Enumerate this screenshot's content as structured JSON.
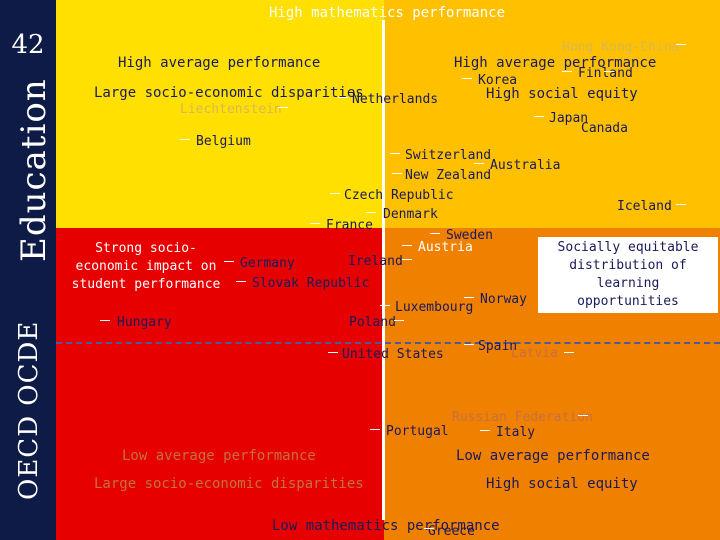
{
  "slide": {
    "page_number": "42",
    "sidebar_education": "Education",
    "sidebar_oecd": "OECD  OCDE"
  },
  "axis_labels": {
    "top": "High mathematics performance",
    "bottom": "Low mathematics performance"
  },
  "quadrants": {
    "upper_left": [
      "High average performance",
      "Large socio-economic disparities"
    ],
    "upper_right": [
      "High average performance",
      "High social equity"
    ],
    "lower_left": [
      "Low average performance",
      "Large socio-economic disparities"
    ],
    "lower_right": [
      "Low average performance",
      "High social equity"
    ]
  },
  "side_boxes": {
    "left": [
      "Strong socio-",
      "economic impact on",
      "student performance"
    ],
    "right": [
      "Socially equitable",
      "distribution of",
      "learning opportunities"
    ]
  },
  "countries": [
    "Hong Kong-China",
    "Finland",
    "Korea",
    "Netherlands",
    "Liechtenstein",
    "Japan",
    "Canada",
    "Belgium",
    "Switzerland",
    "Australia",
    "New Zealand",
    "Czech Republic",
    "Iceland",
    "Denmark",
    "France",
    "Sweden",
    "Austria",
    "Germany",
    "Ireland",
    "Slovak Republic",
    "Norway",
    "Luxembourg",
    "Poland",
    "Hungary",
    "Spain",
    "Latvia",
    "United States",
    "Russian Federation",
    "Portugal",
    "Italy",
    "Greece"
  ],
  "colors": {
    "upper_left": "#ffe000",
    "upper_right": "#ffc000",
    "lower_left": "#e60000",
    "lower_right": "#f08000",
    "sidebar": "#0d1b46"
  }
}
